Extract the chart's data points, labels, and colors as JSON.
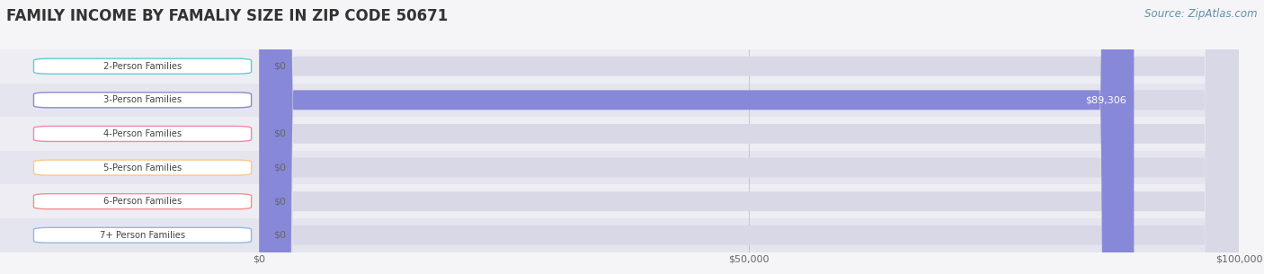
{
  "title": "FAMILY INCOME BY FAMALIY SIZE IN ZIP CODE 50671",
  "source": "Source: ZipAtlas.com",
  "categories": [
    "2-Person Families",
    "3-Person Families",
    "4-Person Families",
    "5-Person Families",
    "6-Person Families",
    "7+ Person Families"
  ],
  "values": [
    0,
    89306,
    0,
    0,
    0,
    0
  ],
  "bar_colors": [
    "#5ecfcf",
    "#8888d8",
    "#f088aa",
    "#f8c888",
    "#f09090",
    "#90b8e8"
  ],
  "pill_border_colors": [
    "#5ecfcf",
    "#8888d8",
    "#f088aa",
    "#f8c888",
    "#f09090",
    "#90b8e8"
  ],
  "row_colors": [
    "#ededf3",
    "#e5e5ef"
  ],
  "bar_bg_color": "#d8d8e6",
  "xlim": [
    0,
    100000
  ],
  "xticks": [
    0,
    50000,
    100000
  ],
  "xtick_labels": [
    "$0",
    "$50,000",
    "$100,000"
  ],
  "bar_height": 0.58,
  "title_fontsize": 12,
  "label_fontsize": 8,
  "source_fontsize": 8.5,
  "fig_bg": "#f5f5f8"
}
